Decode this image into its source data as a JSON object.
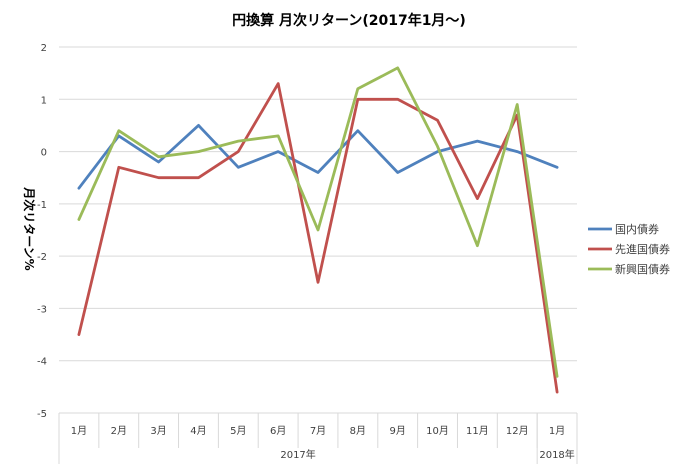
{
  "chart_data": {
    "type": "line",
    "title": "円換算 月次リターン(2017年1月〜)",
    "ylabel": "月次リターン%",
    "xlabel": "",
    "ylim": [
      -5,
      2
    ],
    "yticks": [
      2,
      1,
      0,
      -1,
      -2,
      -3,
      -4,
      -5
    ],
    "grid": "horizontal",
    "legend_position": "right",
    "categories": [
      "1月",
      "2月",
      "3月",
      "4月",
      "5月",
      "6月",
      "7月",
      "8月",
      "9月",
      "10月",
      "11月",
      "12月",
      "1月"
    ],
    "groups": [
      {
        "label": "2017年",
        "from": 0,
        "to": 11
      },
      {
        "label": "2018年",
        "from": 12,
        "to": 12
      }
    ],
    "series": [
      {
        "name": "国内債券",
        "color": "#4F81BD",
        "values": [
          -0.7,
          0.3,
          -0.2,
          0.5,
          -0.3,
          0.0,
          -0.4,
          0.4,
          -0.4,
          0.0,
          0.2,
          0.0,
          -0.3
        ]
      },
      {
        "name": "先進国債券",
        "color": "#C0504D",
        "values": [
          -3.5,
          -0.3,
          -0.5,
          -0.5,
          0.0,
          1.3,
          -2.5,
          1.0,
          1.0,
          0.6,
          -0.9,
          0.7,
          -4.6
        ]
      },
      {
        "name": "新興国債券",
        "color": "#9BBB59",
        "values": [
          -1.3,
          0.4,
          -0.1,
          0.0,
          0.2,
          0.3,
          -1.5,
          1.2,
          1.6,
          0.1,
          -1.8,
          0.9,
          -4.3
        ]
      }
    ]
  }
}
